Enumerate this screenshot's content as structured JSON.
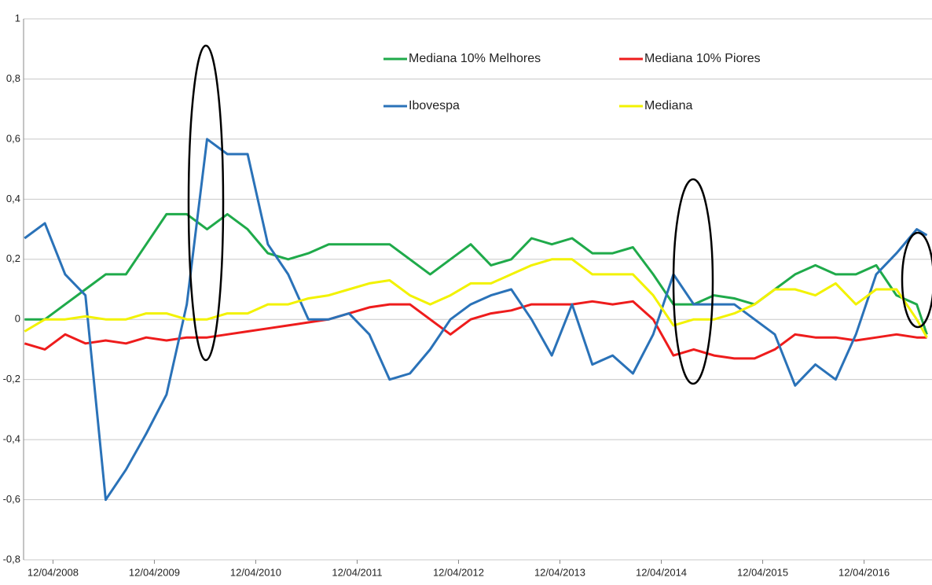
{
  "chart_data": {
    "type": "line",
    "x": [
      2008.0,
      2008.2,
      2008.4,
      2008.6,
      2008.8,
      2009.0,
      2009.2,
      2009.4,
      2009.6,
      2009.8,
      2010.0,
      2010.2,
      2010.4,
      2010.6,
      2010.8,
      2011.0,
      2011.2,
      2011.4,
      2011.6,
      2011.8,
      2012.0,
      2012.2,
      2012.4,
      2012.6,
      2012.8,
      2013.0,
      2013.2,
      2013.4,
      2013.6,
      2013.8,
      2014.0,
      2014.2,
      2014.4,
      2014.6,
      2014.8,
      2015.0,
      2015.2,
      2015.4,
      2015.6,
      2015.8,
      2016.0,
      2016.2,
      2016.4,
      2016.6,
      2016.8,
      2016.9
    ],
    "series": [
      {
        "name": "Mediana 10% Melhores",
        "color": "#1faa4a",
        "values": [
          0,
          0,
          0.05,
          0.1,
          0.15,
          0.15,
          0.25,
          0.35,
          0.35,
          0.3,
          0.35,
          0.3,
          0.22,
          0.2,
          0.22,
          0.25,
          0.25,
          0.25,
          0.25,
          0.2,
          0.15,
          0.2,
          0.25,
          0.18,
          0.2,
          0.27,
          0.25,
          0.27,
          0.22,
          0.22,
          0.24,
          0.15,
          0.05,
          0.05,
          0.08,
          0.07,
          0.05,
          0.1,
          0.15,
          0.18,
          0.15,
          0.15,
          0.18,
          0.08,
          0.05,
          -0.05
        ]
      },
      {
        "name": "Mediana 10% Piores",
        "color": "#ee1c1c",
        "values": [
          -0.08,
          -0.1,
          -0.05,
          -0.08,
          -0.07,
          -0.08,
          -0.06,
          -0.07,
          -0.06,
          -0.06,
          -0.05,
          -0.04,
          -0.03,
          -0.02,
          -0.01,
          0,
          0.02,
          0.04,
          0.05,
          0.05,
          0,
          -0.05,
          0,
          0.02,
          0.03,
          0.05,
          0.05,
          0.05,
          0.06,
          0.05,
          0.06,
          0,
          -0.12,
          -0.1,
          -0.12,
          -0.13,
          -0.13,
          -0.1,
          -0.05,
          -0.06,
          -0.06,
          -0.07,
          -0.06,
          -0.05,
          -0.06,
          -0.06
        ]
      },
      {
        "name": "Ibovespa",
        "color": "#2a72b8",
        "values": [
          0.27,
          0.32,
          0.15,
          0.08,
          -0.6,
          -0.5,
          -0.38,
          -0.25,
          0.05,
          0.6,
          0.55,
          0.55,
          0.25,
          0.15,
          0,
          0,
          0.02,
          -0.05,
          -0.2,
          -0.18,
          -0.1,
          0,
          0.05,
          0.08,
          0.1,
          0,
          -0.12,
          0.05,
          -0.15,
          -0.12,
          -0.18,
          -0.05,
          0.15,
          0.05,
          0.05,
          0.05,
          0,
          -0.05,
          -0.22,
          -0.15,
          -0.2,
          -0.05,
          0.15,
          0.22,
          0.3,
          0.28
        ]
      },
      {
        "name": "Mediana",
        "color": "#f2f200",
        "values": [
          -0.04,
          0,
          0,
          0.01,
          0,
          0,
          0.02,
          0.02,
          0,
          0,
          0.02,
          0.02,
          0.05,
          0.05,
          0.07,
          0.08,
          0.1,
          0.12,
          0.13,
          0.08,
          0.05,
          0.08,
          0.12,
          0.12,
          0.15,
          0.18,
          0.2,
          0.2,
          0.15,
          0.15,
          0.15,
          0.08,
          -0.02,
          0,
          0,
          0.02,
          0.05,
          0.1,
          0.1,
          0.08,
          0.12,
          0.05,
          0.1,
          0.1,
          0,
          -0.06
        ]
      }
    ],
    "xlim": [
      2007.99,
      2016.95
    ],
    "xticks": [
      {
        "value": 2008.28,
        "label": "12/04/2008"
      },
      {
        "value": 2009.28,
        "label": "12/04/2009"
      },
      {
        "value": 2010.28,
        "label": "12/04/2010"
      },
      {
        "value": 2011.28,
        "label": "12/04/2011"
      },
      {
        "value": 2012.28,
        "label": "12/04/2012"
      },
      {
        "value": 2013.28,
        "label": "12/04/2013"
      },
      {
        "value": 2014.28,
        "label": "12/04/2014"
      },
      {
        "value": 2015.28,
        "label": "12/04/2015"
      },
      {
        "value": 2016.28,
        "label": "12/04/2016"
      }
    ],
    "ylim": [
      -0.8,
      1
    ],
    "yticks": [
      {
        "value": -0.8,
        "label": "-0,8"
      },
      {
        "value": -0.6,
        "label": "-0,6"
      },
      {
        "value": -0.4,
        "label": "-0,4"
      },
      {
        "value": -0.2,
        "label": "-0,2"
      },
      0,
      {
        "value": 0.2,
        "label": "0,2"
      },
      {
        "value": 0.4,
        "label": "0,4"
      },
      {
        "value": 0.6,
        "label": "0,6"
      },
      {
        "value": 0.8,
        "label": "0,8"
      },
      1
    ],
    "grid": true
  }
}
